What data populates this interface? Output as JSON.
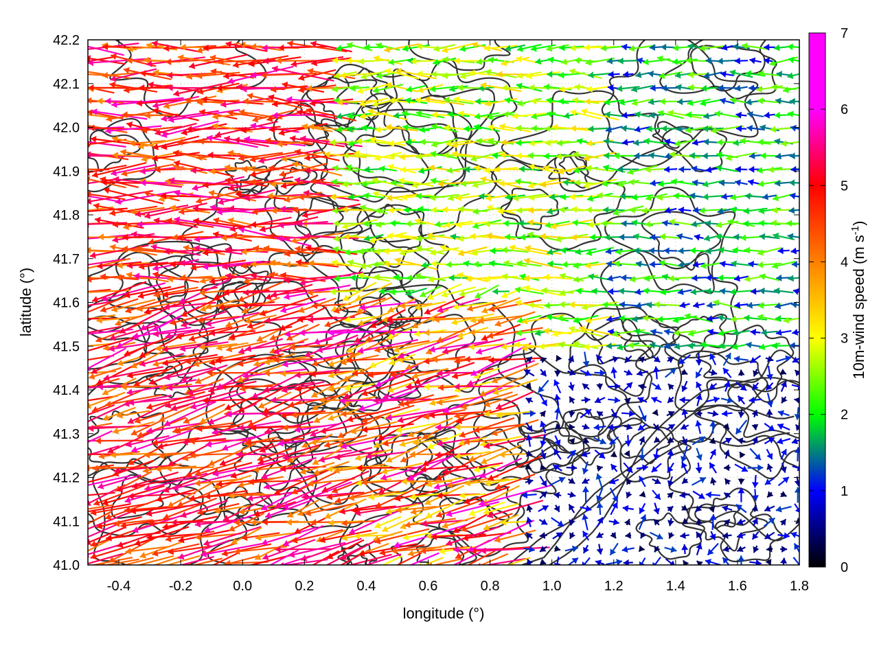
{
  "chart_data": {
    "type": "vector-field",
    "title": "",
    "xlabel": "longitude (°)",
    "ylabel": "latitude (°)",
    "xlim": [
      -0.5,
      1.8
    ],
    "ylim": [
      41.0,
      42.2
    ],
    "xticks": [
      "-0.4",
      "-0.2",
      "0.0",
      "0.2",
      "0.4",
      "0.6",
      "0.8",
      "1.0",
      "1.2",
      "1.4",
      "1.6",
      "1.8"
    ],
    "yticks": [
      "41.0",
      "41.1",
      "41.2",
      "41.3",
      "41.4",
      "41.5",
      "41.6",
      "41.7",
      "41.8",
      "41.9",
      "42.0",
      "42.1",
      "42.2"
    ],
    "grid": "dotted",
    "colorbar": {
      "label_main": "10m-wind speed (m s",
      "label_sup": "-1",
      "label_close": ")",
      "min": 0,
      "max": 7,
      "ticks": [
        "0",
        "1",
        "2",
        "3",
        "4",
        "5",
        "6",
        "7"
      ],
      "stops": [
        "#000000",
        "#0000ff",
        "#00ff00",
        "#ffff00",
        "#ff8000",
        "#ff0000",
        "#ff00ff"
      ]
    },
    "contour_color": "#333333",
    "wind_regions": [
      {
        "region": "west",
        "lon": [
          -0.5,
          0.3
        ],
        "lat": [
          41.0,
          42.2
        ],
        "speed": [
          4.5,
          6.8
        ],
        "direction": "westward, slightly north"
      },
      {
        "region": "central-north",
        "lon": [
          0.5,
          1.0
        ],
        "lat": [
          41.7,
          42.2
        ],
        "speed": [
          2.0,
          4.0
        ],
        "direction": "westward"
      },
      {
        "region": "central-south",
        "lon": [
          0.3,
          0.9
        ],
        "lat": [
          41.0,
          41.6
        ],
        "speed": [
          3.5,
          7.0
        ],
        "direction": "westward, north-west"
      },
      {
        "region": "east",
        "lon": [
          1.2,
          1.8
        ],
        "lat": [
          41.5,
          42.2
        ],
        "speed": [
          1.0,
          3.0
        ],
        "direction": "westward"
      },
      {
        "region": "south-east",
        "lon": [
          0.9,
          1.8
        ],
        "lat": [
          41.0,
          41.5
        ],
        "speed": [
          0.3,
          1.5
        ],
        "direction": "variable"
      }
    ]
  }
}
